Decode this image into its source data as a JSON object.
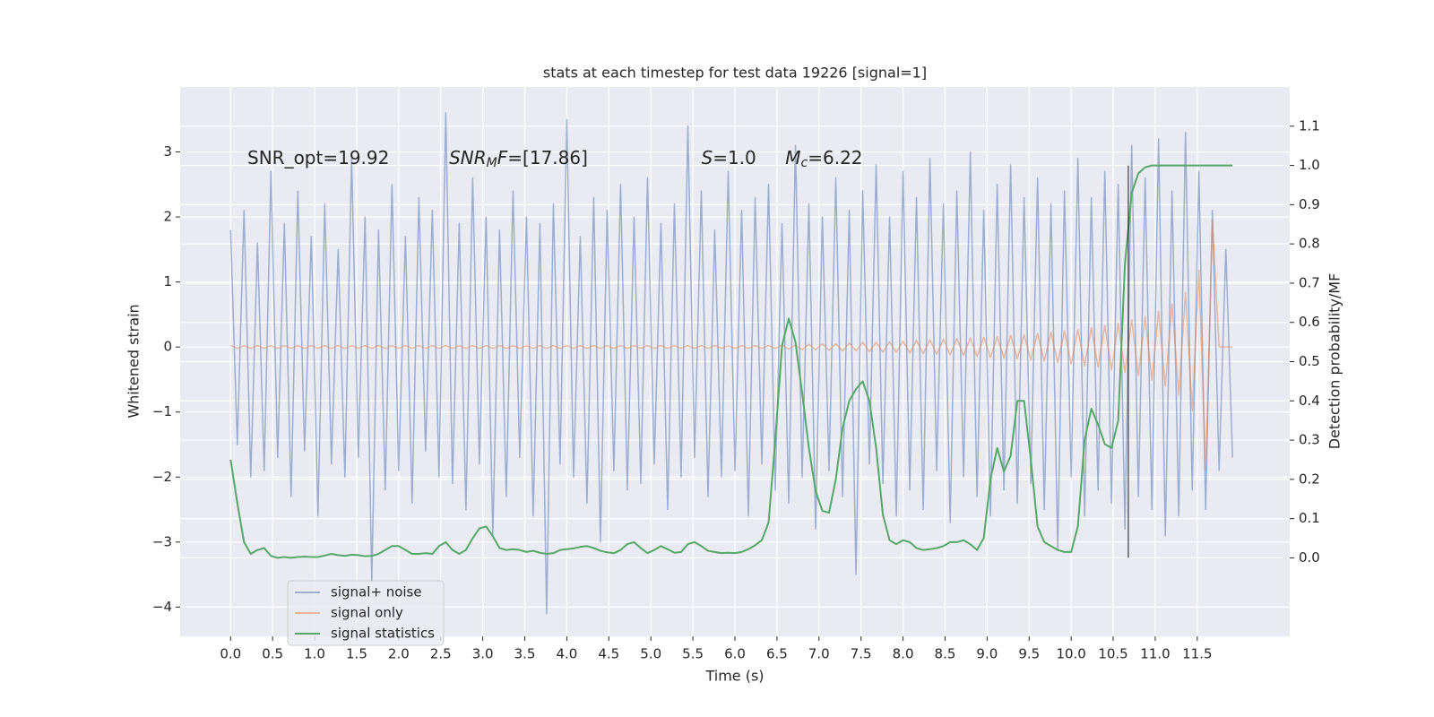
{
  "chart_data": {
    "type": "line",
    "title": "stats at each timestep for test data 19226 [signal=1]",
    "xlabel": "Time (s)",
    "ylabel": "Whitened strain",
    "y2label": "Detection probability/MF",
    "xlim": [
      -0.6,
      12.6
    ],
    "ylim": [
      -4.45,
      4.0
    ],
    "y2lim": [
      -0.2,
      1.2
    ],
    "grid": true,
    "legend": "lower left",
    "xticks": [
      {
        "value": 0,
        "label": "0.0"
      },
      {
        "value": 0.5,
        "label": "0.5"
      },
      {
        "value": 1,
        "label": "1.0"
      },
      {
        "value": 1.5,
        "label": "1.5"
      },
      {
        "value": 2,
        "label": "2.0"
      },
      {
        "value": 2.5,
        "label": "2.5"
      },
      {
        "value": 3,
        "label": "3.0"
      },
      {
        "value": 3.5,
        "label": "3.5"
      },
      {
        "value": 4,
        "label": "4.0"
      },
      {
        "value": 4.5,
        "label": "4.5"
      },
      {
        "value": 5,
        "label": "5.0"
      },
      {
        "value": 5.5,
        "label": "5.5"
      },
      {
        "value": 6,
        "label": "6.0"
      },
      {
        "value": 6.5,
        "label": "6.5"
      },
      {
        "value": 7,
        "label": "7.0"
      },
      {
        "value": 7.5,
        "label": "7.5"
      },
      {
        "value": 8,
        "label": "8.0"
      },
      {
        "value": 8.5,
        "label": "8.5"
      },
      {
        "value": 9,
        "label": "9.0"
      },
      {
        "value": 9.5,
        "label": "9.5"
      },
      {
        "value": 10,
        "label": "10.0"
      },
      {
        "value": 10.5,
        "label": "10.5"
      },
      {
        "value": 11,
        "label": "11.0"
      },
      {
        "value": 11.5,
        "label": "11.5"
      }
    ],
    "yticks": [
      {
        "value": -4,
        "label": "−4"
      },
      {
        "value": -3,
        "label": "−3"
      },
      {
        "value": -2,
        "label": "−2"
      },
      {
        "value": -1,
        "label": "−1"
      },
      0,
      1,
      2,
      3
    ],
    "y2ticks": [
      {
        "value": 0,
        "label": "0.0"
      },
      {
        "value": 0.1,
        "label": "0.1"
      },
      {
        "value": 0.2,
        "label": "0.2"
      },
      {
        "value": 0.3,
        "label": "0.3"
      },
      {
        "value": 0.4,
        "label": "0.4"
      },
      {
        "value": 0.5,
        "label": "0.5"
      },
      {
        "value": 0.6,
        "label": "0.6"
      },
      {
        "value": 0.7,
        "label": "0.7"
      },
      {
        "value": 0.8,
        "label": "0.8"
      },
      {
        "value": 0.9,
        "label": "0.9"
      },
      {
        "value": 1,
        "label": "1.0"
      },
      {
        "value": 1.1,
        "label": "1.1"
      }
    ],
    "annotations": [
      [
        {
          "text": "SNR_opt=19.92"
        }
      ],
      [
        {
          "text": "SNR",
          "italic": true
        },
        {
          "text": "M",
          "italic": true,
          "sub": true
        },
        {
          "text": "F",
          "italic": true
        },
        {
          "text": "=[17.86]"
        }
      ],
      [
        {
          "text": "S",
          "italic": true
        },
        {
          "text": "=1.0"
        }
      ],
      [
        {
          "text": "M",
          "italic": true
        },
        {
          "text": "c",
          "italic": true,
          "sub": true
        },
        {
          "text": "=6.22"
        }
      ]
    ],
    "vline": {
      "x": 10.68,
      "y": [
        0,
        1.0
      ],
      "color": "#000000"
    },
    "x": [
      0,
      0.08,
      0.16,
      0.24,
      0.32,
      0.4,
      0.48,
      0.56,
      0.64,
      0.72,
      0.8,
      0.88,
      0.96,
      1.04,
      1.12,
      1.2,
      1.28,
      1.36,
      1.44,
      1.52,
      1.6,
      1.68,
      1.76,
      1.84,
      1.92,
      2,
      2.08,
      2.16,
      2.24,
      2.32,
      2.4,
      2.48,
      2.56,
      2.64,
      2.72,
      2.8,
      2.88,
      2.96,
      3.04,
      3.12,
      3.2,
      3.28,
      3.36,
      3.44,
      3.52,
      3.6,
      3.68,
      3.76,
      3.84,
      3.92,
      4,
      4.08,
      4.16,
      4.24,
      4.32,
      4.4,
      4.48,
      4.56,
      4.64,
      4.72,
      4.8,
      4.88,
      4.96,
      5.04,
      5.12,
      5.2,
      5.28,
      5.36,
      5.44,
      5.52,
      5.6,
      5.68,
      5.76,
      5.84,
      5.92,
      6,
      6.08,
      6.16,
      6.24,
      6.32,
      6.4,
      6.48,
      6.56,
      6.64,
      6.72,
      6.8,
      6.88,
      6.96,
      7.04,
      7.12,
      7.2,
      7.28,
      7.36,
      7.44,
      7.52,
      7.6,
      7.68,
      7.76,
      7.84,
      7.92,
      8,
      8.08,
      8.16,
      8.24,
      8.32,
      8.4,
      8.48,
      8.56,
      8.64,
      8.72,
      8.8,
      8.88,
      8.96,
      9.04,
      9.12,
      9.2,
      9.28,
      9.36,
      9.44,
      9.52,
      9.6,
      9.68,
      9.76,
      9.84,
      9.92,
      10,
      10.08,
      10.16,
      10.24,
      10.32,
      10.4,
      10.48,
      10.56,
      10.64,
      10.72,
      10.8,
      10.88,
      10.96,
      11.04,
      11.12,
      11.2,
      11.28,
      11.36,
      11.44,
      11.52,
      11.6,
      11.68,
      11.76,
      11.84,
      11.92
    ],
    "series": [
      {
        "name": "signal+ noise",
        "color": "#4c72b0",
        "values": [
          1.8,
          -1.5,
          2.1,
          -2.0,
          1.6,
          -1.9,
          2.7,
          -1.7,
          1.9,
          -2.3,
          2.4,
          -1.6,
          1.7,
          -2.6,
          2.2,
          -1.8,
          1.5,
          -2.0,
          2.9,
          -1.7,
          2.0,
          -3.6,
          1.8,
          -2.2,
          2.5,
          -1.9,
          1.7,
          -2.4,
          2.3,
          -1.6,
          2.1,
          -2.0,
          3.6,
          -2.1,
          1.9,
          -2.5,
          2.6,
          -1.8,
          2.0,
          -2.9,
          1.8,
          -2.3,
          2.4,
          -1.7,
          2.0,
          -2.6,
          1.9,
          -4.1,
          2.2,
          -1.8,
          3.5,
          -2.0,
          1.7,
          -2.4,
          2.3,
          -3.0,
          2.1,
          -1.9,
          2.5,
          -2.2,
          2.0,
          -2.1,
          2.6,
          -1.8,
          1.9,
          -2.5,
          2.2,
          -2.0,
          3.4,
          -1.7,
          2.4,
          -2.3,
          1.8,
          -2.0,
          2.7,
          -1.9,
          2.1,
          -2.6,
          2.3,
          -1.8,
          2.5,
          -2.2,
          1.9,
          -2.4,
          3.1,
          -2.0,
          2.2,
          -2.8,
          2.0,
          -1.9,
          2.6,
          -2.3,
          2.1,
          -3.5,
          2.4,
          -1.8,
          2.8,
          -2.1,
          2.0,
          -2.6,
          2.7,
          -2.2,
          2.3,
          -2.5,
          2.9,
          -1.9,
          2.2,
          -2.7,
          2.4,
          -2.0,
          3.0,
          -2.3,
          2.1,
          -2.6,
          2.5,
          -2.2,
          2.8,
          -2.4,
          2.3,
          -2.1,
          2.6,
          -2.5,
          2.2,
          -3.1,
          2.4,
          -2.0,
          2.9,
          -2.6,
          2.3,
          -2.2,
          2.7,
          -2.4,
          2.5,
          -2.8,
          3.1,
          -2.3,
          2.6,
          -2.5,
          3.2,
          -2.9,
          2.4,
          -2.6,
          3.3,
          -2.2,
          2.7,
          -2.5,
          2.1,
          -1.9,
          1.5,
          -1.7
        ]
      },
      {
        "name": "signal only",
        "color": "#dd8452",
        "values": [
          0.02,
          -0.02,
          0.02,
          -0.02,
          0.02,
          -0.02,
          0.02,
          -0.02,
          0.02,
          -0.02,
          0.02,
          -0.02,
          0.02,
          -0.02,
          0.02,
          -0.02,
          0.02,
          -0.02,
          0.02,
          -0.02,
          0.02,
          -0.02,
          0.02,
          -0.02,
          0.02,
          -0.02,
          0.02,
          -0.02,
          0.02,
          -0.02,
          0.02,
          -0.02,
          0.02,
          -0.02,
          0.02,
          -0.02,
          0.02,
          -0.02,
          0.02,
          -0.02,
          0.02,
          -0.02,
          0.02,
          -0.02,
          0.02,
          -0.02,
          0.02,
          -0.02,
          0.02,
          -0.02,
          0.02,
          -0.02,
          0.02,
          -0.02,
          0.02,
          -0.02,
          0.02,
          -0.02,
          0.02,
          -0.02,
          0.02,
          -0.02,
          0.02,
          -0.02,
          0.02,
          -0.02,
          0.02,
          -0.02,
          0.02,
          -0.02,
          0.02,
          -0.02,
          0.02,
          -0.02,
          0.02,
          -0.02,
          0.02,
          -0.02,
          0.02,
          -0.02,
          0.02,
          -0.02,
          0.03,
          -0.03,
          0.03,
          -0.04,
          0.04,
          -0.04,
          0.05,
          -0.05,
          0.05,
          -0.06,
          0.06,
          -0.06,
          0.07,
          -0.07,
          0.07,
          -0.08,
          0.08,
          -0.08,
          0.09,
          -0.09,
          0.1,
          -0.1,
          0.11,
          -0.11,
          0.12,
          -0.12,
          0.13,
          -0.13,
          0.14,
          -0.15,
          0.15,
          -0.16,
          0.16,
          -0.17,
          0.18,
          -0.18,
          0.19,
          -0.2,
          0.21,
          -0.22,
          0.23,
          -0.24,
          0.25,
          -0.26,
          0.27,
          -0.29,
          0.3,
          -0.31,
          0.33,
          -0.35,
          0.37,
          -0.39,
          0.42,
          -0.44,
          0.47,
          -0.51,
          0.55,
          -0.6,
          0.66,
          -0.74,
          0.84,
          -0.98,
          1.18,
          -1.9,
          1.95,
          0,
          0,
          0
        ]
      },
      {
        "name": "signal statistics",
        "color": "#55a868",
        "axis": "y2",
        "values": [
          0.25,
          0.14,
          0.04,
          0.01,
          0.02,
          0.025,
          0.005,
          0,
          0.002,
          0,
          0.002,
          0.003,
          0.002,
          0.002,
          0.006,
          0.01,
          0.007,
          0.005,
          0.008,
          0.007,
          0.004,
          0.005,
          0.01,
          0.02,
          0.03,
          0.03,
          0.02,
          0.01,
          0.01,
          0.012,
          0.01,
          0.03,
          0.04,
          0.02,
          0.01,
          0.02,
          0.05,
          0.075,
          0.08,
          0.055,
          0.025,
          0.02,
          0.022,
          0.02,
          0.015,
          0.018,
          0.013,
          0.01,
          0.012,
          0.02,
          0.022,
          0.024,
          0.028,
          0.03,
          0.025,
          0.018,
          0.014,
          0.012,
          0.02,
          0.035,
          0.04,
          0.025,
          0.012,
          0.02,
          0.03,
          0.022,
          0.013,
          0.015,
          0.035,
          0.04,
          0.03,
          0.018,
          0.015,
          0.012,
          0.013,
          0.012,
          0.015,
          0.022,
          0.032,
          0.045,
          0.09,
          0.3,
          0.54,
          0.61,
          0.55,
          0.42,
          0.28,
          0.17,
          0.12,
          0.115,
          0.2,
          0.33,
          0.4,
          0.43,
          0.45,
          0.4,
          0.28,
          0.11,
          0.045,
          0.035,
          0.045,
          0.04,
          0.025,
          0.02,
          0.022,
          0.025,
          0.03,
          0.04,
          0.04,
          0.045,
          0.035,
          0.02,
          0.05,
          0.2,
          0.28,
          0.22,
          0.26,
          0.4,
          0.4,
          0.25,
          0.08,
          0.04,
          0.03,
          0.02,
          0.015,
          0.015,
          0.08,
          0.3,
          0.38,
          0.34,
          0.29,
          0.28,
          0.35,
          0.75,
          0.93,
          0.98,
          0.995,
          1,
          1,
          1,
          1,
          1,
          1,
          1,
          1,
          1,
          1,
          1,
          1,
          1
        ]
      }
    ]
  }
}
